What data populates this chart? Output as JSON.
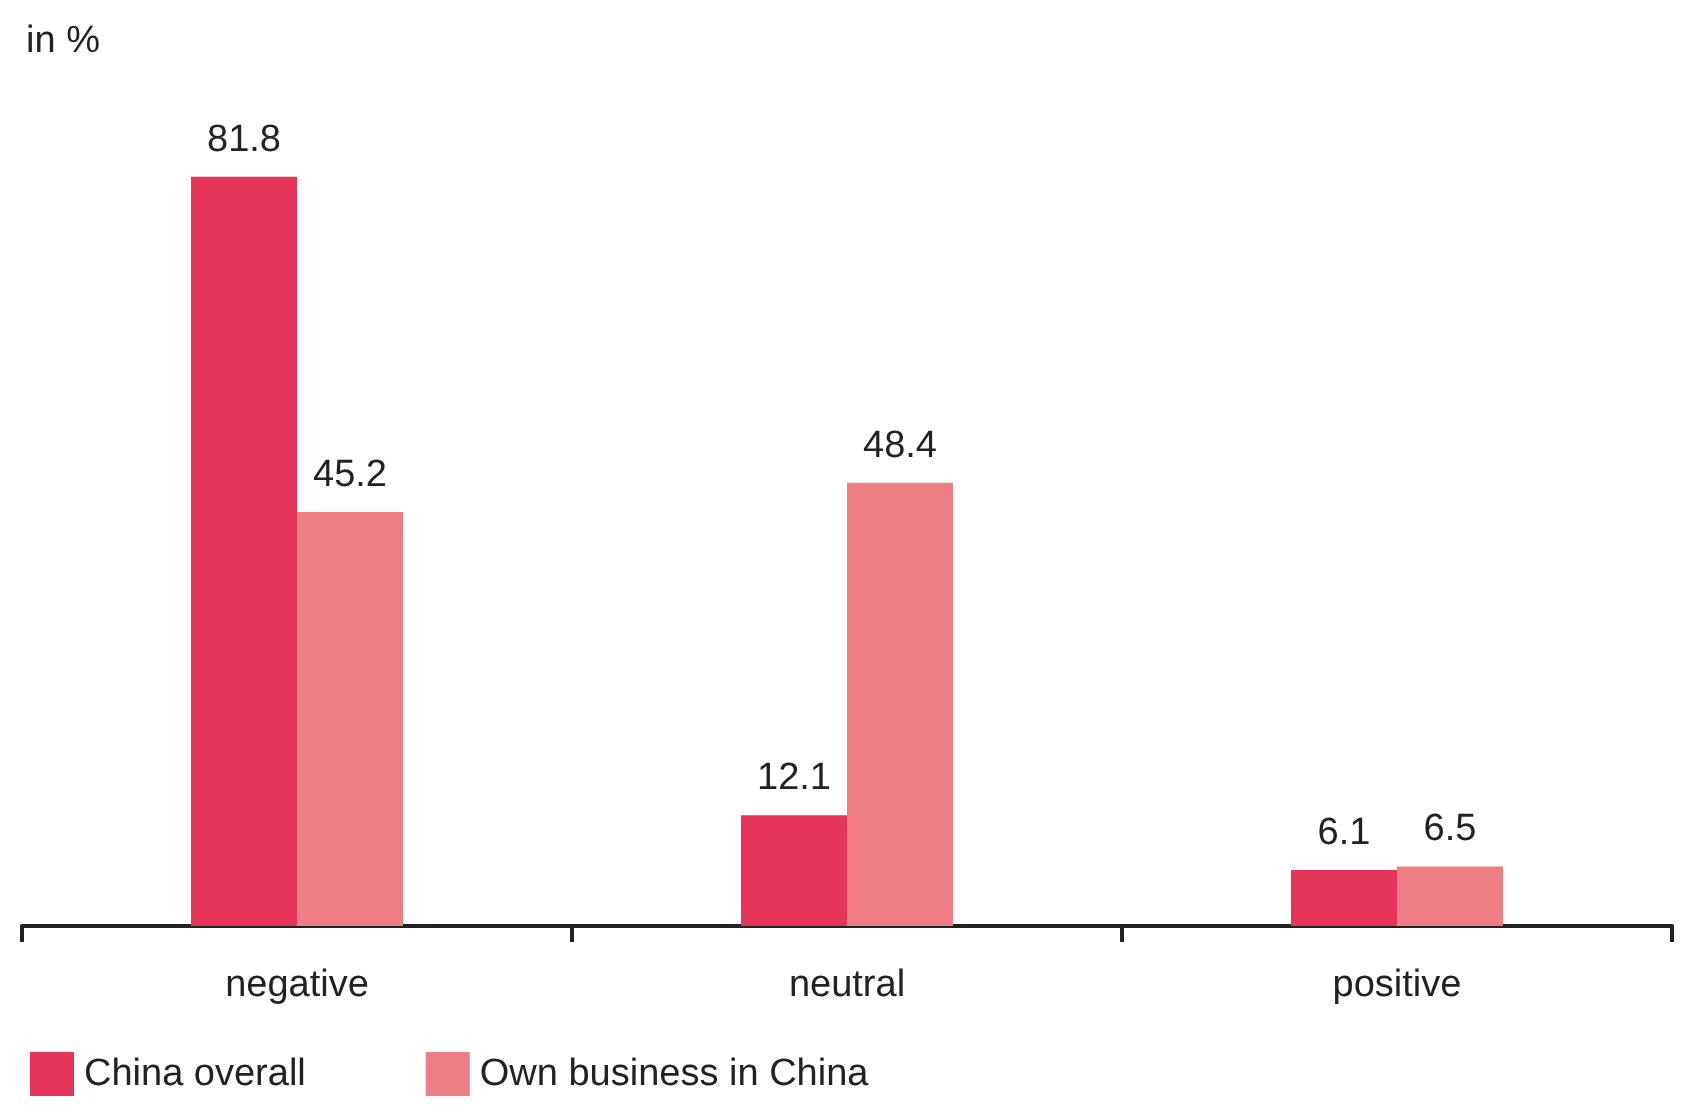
{
  "chart_data": {
    "type": "bar",
    "annotations": [
      "in %"
    ],
    "categories": [
      "negative",
      "neutral",
      "positive"
    ],
    "series": [
      {
        "name": "China overall",
        "color": "#e5345a",
        "values": [
          81.8,
          12.1,
          6.1
        ]
      },
      {
        "name": "Own business in China",
        "color": "#ee7e84",
        "values": [
          45.2,
          48.4,
          6.5
        ]
      }
    ],
    "data_labels": true,
    "legend": "bottom left",
    "grid": false
  }
}
